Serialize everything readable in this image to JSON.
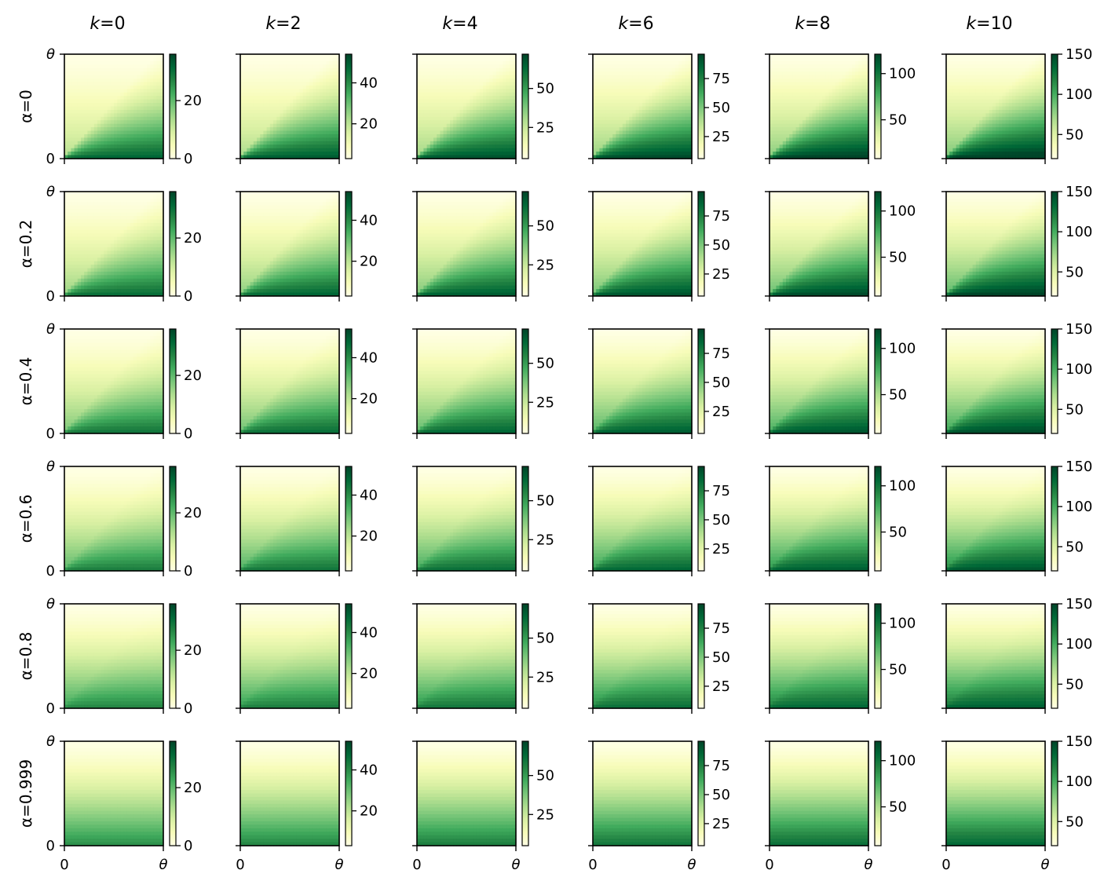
{
  "chart_data": {
    "type": "heatmap",
    "colormap": "YlGn",
    "colormap_stops": [
      "#ffffe5",
      "#f7fcb9",
      "#d9f0a3",
      "#addd8e",
      "#78c679",
      "#41ab5d",
      "#238443",
      "#006837",
      "#004529"
    ],
    "column_titles": [
      "k=0",
      "k=2",
      "k=4",
      "k=6",
      "k=8",
      "k=10"
    ],
    "column_title_parts": [
      {
        "var": "k",
        "val": "=0"
      },
      {
        "var": "k",
        "val": "=2"
      },
      {
        "var": "k",
        "val": "=4"
      },
      {
        "var": "k",
        "val": "=6"
      },
      {
        "var": "k",
        "val": "=8"
      },
      {
        "var": "k",
        "val": "=10"
      }
    ],
    "row_labels": [
      "α=0",
      "α=0.2",
      "α=0.4",
      "α=0.6",
      "α=0.8",
      "α=0.999"
    ],
    "row_alpha": [
      0,
      0.2,
      0.4,
      0.6,
      0.8,
      0.999
    ],
    "col_k": [
      0,
      2,
      4,
      6,
      8,
      10
    ],
    "x_tick_labels": [
      "0",
      "θ"
    ],
    "y_tick_labels": [
      "0",
      "θ"
    ],
    "colorbar_ranges": [
      [
        0,
        36
      ],
      [
        3,
        54
      ],
      [
        5,
        72
      ],
      [
        6,
        96
      ],
      [
        8,
        121
      ],
      [
        20,
        150
      ]
    ],
    "colorbar_ticks": [
      [
        "0",
        "20"
      ],
      [
        "20",
        "40"
      ],
      [
        "25",
        "50"
      ],
      [
        "25",
        "50",
        "75"
      ],
      [
        "50",
        "100"
      ],
      [
        "50",
        "100",
        "150"
      ]
    ],
    "colorbar_tick_values": [
      [
        0,
        20
      ],
      [
        20,
        40
      ],
      [
        25,
        50
      ],
      [
        25,
        50,
        75
      ],
      [
        50,
        100
      ],
      [
        50,
        100,
        150
      ]
    ]
  }
}
